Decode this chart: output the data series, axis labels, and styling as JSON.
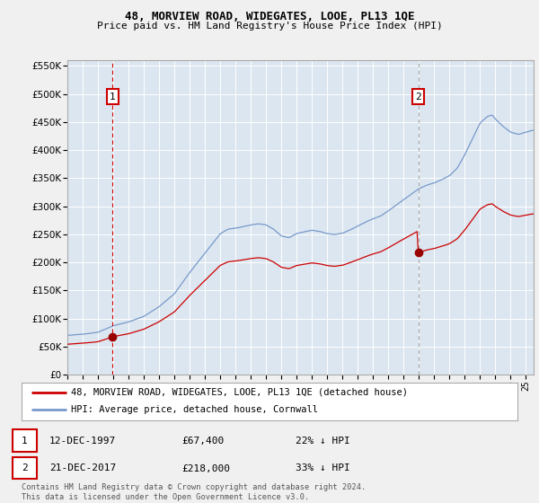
{
  "title": "48, MORVIEW ROAD, WIDEGATES, LOOE, PL13 1QE",
  "subtitle": "Price paid vs. HM Land Registry's House Price Index (HPI)",
  "legend_line1": "48, MORVIEW ROAD, WIDEGATES, LOOE, PL13 1QE (detached house)",
  "legend_line2": "HPI: Average price, detached house, Cornwall",
  "annotation1_date": "12-DEC-1997",
  "annotation1_price": "£67,400",
  "annotation1_hpi": "22% ↓ HPI",
  "annotation2_date": "21-DEC-2017",
  "annotation2_price": "£218,000",
  "annotation2_hpi": "33% ↓ HPI",
  "footer": "Contains HM Land Registry data © Crown copyright and database right 2024.\nThis data is licensed under the Open Government Licence v3.0.",
  "price_paid_color": "#cc0000",
  "hpi_color": "#7799cc",
  "annotation1_vline_color": "#cc0000",
  "annotation2_vline_color": "#aaaaaa",
  "sale1_marker_color": "#990000",
  "sale2_marker_color": "#990000",
  "ylim": [
    0,
    560000
  ],
  "yticks": [
    0,
    50000,
    100000,
    150000,
    200000,
    250000,
    300000,
    350000,
    400000,
    450000,
    500000,
    550000
  ],
  "background_color": "#f0f0f0",
  "plot_background_color": "#dce6f0",
  "grid_color": "#ffffff"
}
